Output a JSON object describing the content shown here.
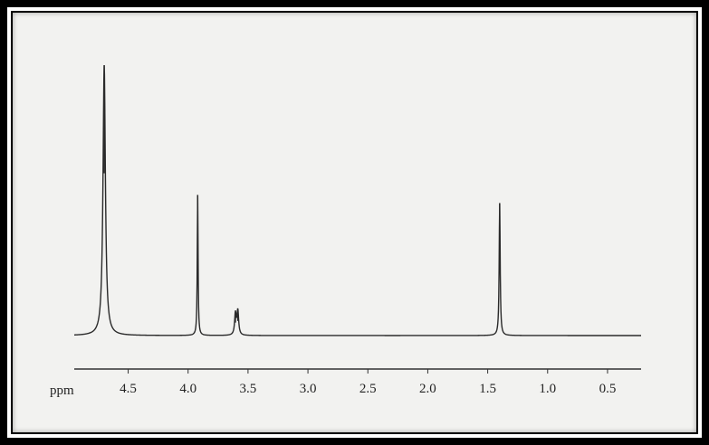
{
  "chart_data": {
    "type": "line",
    "title": "",
    "xlabel": "ppm",
    "ylabel": "",
    "xlim": [
      4.95,
      0.22
    ],
    "ylim": [
      0,
      100
    ],
    "x_direction": "reversed",
    "grid": false,
    "legend": "none",
    "ticks": [
      {
        "value": 4.5,
        "label": "4.5"
      },
      {
        "value": 4.0,
        "label": "4.0"
      },
      {
        "value": 3.5,
        "label": "3.5"
      },
      {
        "value": 3.0,
        "label": "3.0"
      },
      {
        "value": 2.5,
        "label": "2.5"
      },
      {
        "value": 2.0,
        "label": "2.0"
      },
      {
        "value": 1.5,
        "label": "1.5"
      },
      {
        "value": 1.0,
        "label": "1.0"
      },
      {
        "value": 0.5,
        "label": "0.5"
      }
    ],
    "peaks": [
      {
        "ppm": 4.7,
        "height": 100,
        "width": 0.012
      },
      {
        "ppm": 3.92,
        "height": 52,
        "width": 0.004
      },
      {
        "ppm": 3.605,
        "height": 8,
        "width": 0.008
      },
      {
        "ppm": 3.585,
        "height": 9,
        "width": 0.008
      },
      {
        "ppm": 1.4,
        "height": 49,
        "width": 0.005
      }
    ],
    "colors": {
      "trace": "#2a2a2a",
      "axis": "#333333",
      "background": "#f2f2f0"
    }
  }
}
